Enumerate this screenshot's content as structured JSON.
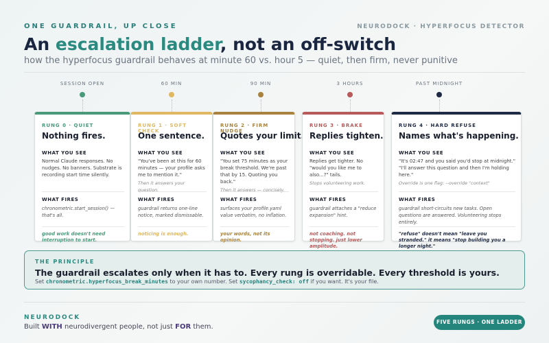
{
  "header": {
    "eyebrow": "ONE GUARDRAIL, UP CLOSE",
    "brand": "NEURODOCK · HYPERFOCUS DETECTOR",
    "title": [
      "An ",
      "escalation ladder",
      ", not an off-switch"
    ],
    "subtitle": "how the hyperfocus guardrail behaves at minute 60 vs. hour 5 — quiet, then firm, never punitive"
  },
  "timeline": [
    "SESSION OPEN",
    "60 MIN",
    "90 MIN",
    "3 HOURS",
    "PAST MIDNIGHT"
  ],
  "cards": [
    {
      "rung": "RUNG 0 · QUIET",
      "title": "Nothing fires.",
      "see_label": "WHAT YOU SEE",
      "see": "Normal Claude responses. No nudges. No banners. Substrate is recording start time silently.",
      "fires_label": "WHAT FIRES",
      "fires": "chronometric.start_session() — that's all.",
      "footer": "good work doesn't need interruption to start."
    },
    {
      "rung": "RUNG 1 · SOFT CHECK",
      "title": "One sentence.",
      "see_label": "WHAT YOU SEE",
      "see": "\"You've been at this for 60 minutes — your profile asks me to mention it.\"",
      "note": "Then it answers your question.",
      "fires_label": "WHAT FIRES",
      "fires": "guardrail returns one-line notice, marked dismissable.",
      "footer": "noticing is enough."
    },
    {
      "rung": "RUNG 2 · FIRM NUDGE",
      "title": "Quotes your limit.",
      "see_label": "WHAT YOU SEE",
      "see": "\"You set 75 minutes as your break threshold. We're past that by 15. Quoting you back.\"",
      "note": "Then it answers — concisely.",
      "fires_label": "WHAT FIRES",
      "fires": "surfaces your profile.yaml value verbatim, no inflation.",
      "footer": "your words, not its opinion."
    },
    {
      "rung": "RUNG 3 · BRAKE",
      "title": "Replies tighten.",
      "see_label": "WHAT YOU SEE",
      "see": "Replies get tighter. No \"would you like me to also...?\" tails.",
      "note": "Stops volunteering work.",
      "fires_label": "WHAT FIRES",
      "fires": "guardrail attaches a \"reduce expansion\" hint.",
      "footer": "not coaching. not stopping. just lower amplitude."
    },
    {
      "rung": "RUNG 4 · HARD REFUSE",
      "title": "Names what's happening.",
      "see_label": "WHAT YOU SEE",
      "see": "\"It's 02:47 and you said you'd stop at midnight.\" \"I'll answer this question and then I'm holding here.\"",
      "note": "Override is one flag: --override \"context\"",
      "fires_label": "WHAT FIRES",
      "fires": "guardrail short-circuits new tasks. Open questions are answered. Volunteering stops entirely.",
      "footer": "\"refuse\" doesn't mean \"leave you stranded.\" it means \"stop building you a longer night.\""
    }
  ],
  "principle": {
    "label": "THE PRINCIPLE",
    "heading": "The guardrail escalates only when it has to. Every rung is overridable. Every threshold is yours.",
    "body": [
      "Set ",
      "chronometric.hyperfocus_break_minutes",
      " to your own number. Set ",
      "sycophancy_check: off",
      " if you want. It's your file."
    ]
  },
  "footer": {
    "brand": "NEURODOCK",
    "tagline": [
      "Built ",
      "WITH",
      " neurodivergent people, not just ",
      "FOR",
      " them."
    ],
    "badge": "FIVE RUNGS · ONE LADDER"
  }
}
